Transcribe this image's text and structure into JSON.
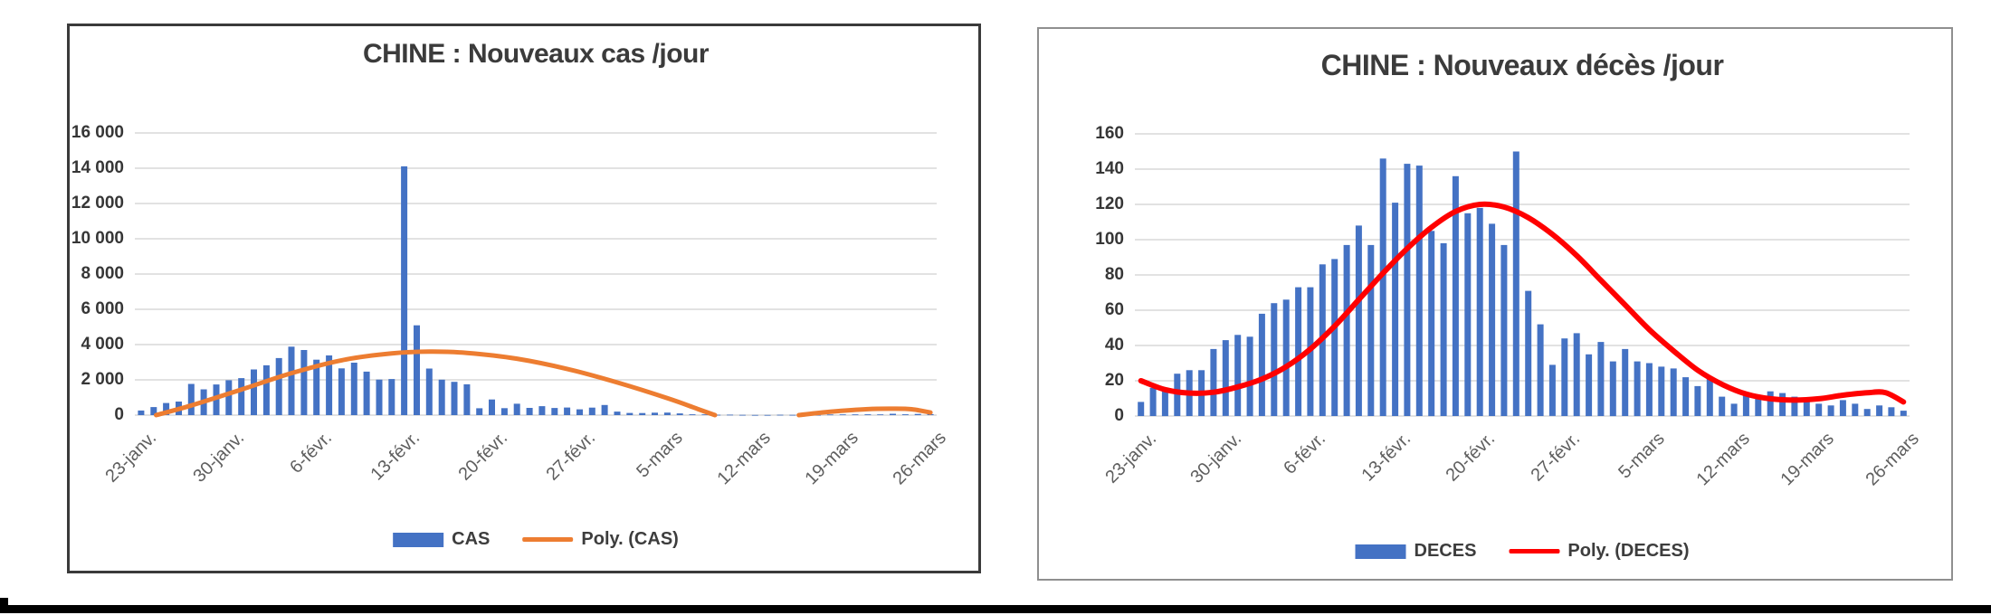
{
  "page": {
    "background": "#ffffff",
    "bottom_rule_color": "#000000"
  },
  "chart_data": [
    {
      "type": "bar",
      "title": "CHINE : Nouveaux cas /jour",
      "xlabel": "",
      "ylabel": "",
      "ylim": [
        0,
        16000
      ],
      "ystep": 2000,
      "grid": true,
      "legend_position": "bottom",
      "ytick_labels": [
        "0",
        "2 000",
        "4 000",
        "6 000",
        "8 000",
        "10 000",
        "12 000",
        "14 000",
        "16 000"
      ],
      "xtick_labels": [
        "23-janv.",
        "30-janv.",
        "6-févr.",
        "13-févr.",
        "20-févr.",
        "27-févr.",
        "5-mars",
        "12-mars",
        "19-mars",
        "26-mars"
      ],
      "xtick_days": [
        0,
        7,
        14,
        21,
        28,
        35,
        42,
        49,
        56,
        63
      ],
      "categories_note": "daily values from 23-janv. to 26-mars",
      "series": [
        {
          "name": "CAS",
          "kind": "bar",
          "color": "#4472C4",
          "values": [
            259,
            457,
            688,
            769,
            1771,
            1459,
            1737,
            1981,
            2099,
            2589,
            2825,
            3235,
            3884,
            3694,
            3143,
            3385,
            2652,
            2973,
            2467,
            2015,
            2048,
            14108,
            5090,
            2641,
            2009,
            1888,
            1749,
            391,
            889,
            397,
            648,
            409,
            508,
            406,
            433,
            327,
            427,
            573,
            202,
            125,
            119,
            139,
            143,
            99,
            44,
            40,
            19,
            24,
            15,
            8,
            11,
            20,
            16,
            21,
            13,
            34,
            39,
            41,
            46,
            39,
            78,
            47,
            67,
            55
          ]
        },
        {
          "name": "Poly. (CAS)",
          "kind": "trendline",
          "color": "#ED7D31",
          "stroke_width": 5,
          "segments": [
            [
              [
                1.2,
                0
              ],
              [
                4,
                550
              ],
              [
                8,
                1450
              ],
              [
                12,
                2380
              ],
              [
                16,
                3110
              ],
              [
                20,
                3500
              ],
              [
                23,
                3600
              ],
              [
                26,
                3530
              ],
              [
                30,
                3200
              ],
              [
                34,
                2620
              ],
              [
                38,
                1850
              ],
              [
                42,
                960
              ],
              [
                44.5,
                330
              ],
              [
                45.8,
                0
              ]
            ],
            [
              [
                52.5,
                0
              ],
              [
                55,
                190
              ],
              [
                58,
                340
              ],
              [
                60,
                365
              ],
              [
                61.5,
                335
              ],
              [
                63,
                150
              ]
            ]
          ]
        }
      ]
    },
    {
      "type": "bar",
      "title": "CHINE : Nouveaux décès /jour",
      "xlabel": "",
      "ylabel": "",
      "ylim": [
        0,
        160
      ],
      "ystep": 20,
      "grid": true,
      "legend_position": "bottom",
      "ytick_labels": [
        "0",
        "20",
        "40",
        "60",
        "80",
        "100",
        "120",
        "140",
        "160"
      ],
      "xtick_labels": [
        "23-janv.",
        "30-janv.",
        "6-févr.",
        "13-févr.",
        "20-févr.",
        "27-févr.",
        "5-mars",
        "12-mars",
        "19-mars",
        "26-mars"
      ],
      "xtick_days": [
        0,
        7,
        14,
        21,
        28,
        35,
        42,
        49,
        56,
        63
      ],
      "categories_note": "daily values from 23-janv. to 26-mars",
      "series": [
        {
          "name": "DECES",
          "kind": "bar",
          "color": "#4472C4",
          "values": [
            8,
            16,
            15,
            24,
            26,
            26,
            38,
            43,
            46,
            45,
            58,
            64,
            66,
            73,
            73,
            86,
            89,
            97,
            108,
            97,
            146,
            121,
            143,
            142,
            105,
            98,
            136,
            115,
            118,
            109,
            97,
            150,
            71,
            52,
            29,
            44,
            47,
            35,
            42,
            31,
            38,
            31,
            30,
            28,
            27,
            22,
            17,
            22,
            11,
            7,
            13,
            10,
            14,
            13,
            11,
            8,
            7,
            6,
            9,
            7,
            4,
            6,
            5,
            3
          ]
        },
        {
          "name": "Poly. (DECES)",
          "kind": "trendline",
          "color": "#FF0000",
          "stroke_width": 6,
          "segments": [
            [
              [
                0,
                20
              ],
              [
                2,
                15
              ],
              [
                4,
                13
              ],
              [
                6,
                13.5
              ],
              [
                8,
                16.5
              ],
              [
                10,
                21
              ],
              [
                12,
                28
              ],
              [
                14,
                38
              ],
              [
                16,
                51
              ],
              [
                18,
                66
              ],
              [
                20,
                81
              ],
              [
                22,
                95
              ],
              [
                24,
                107
              ],
              [
                26,
                116
              ],
              [
                28,
                120
              ],
              [
                30,
                118.5
              ],
              [
                32,
                112.5
              ],
              [
                34,
                103
              ],
              [
                36,
                91
              ],
              [
                38,
                77
              ],
              [
                40,
                63
              ],
              [
                42,
                49
              ],
              [
                44,
                37
              ],
              [
                46,
                26
              ],
              [
                48,
                18
              ],
              [
                50,
                12.5
              ],
              [
                52,
                9.8
              ],
              [
                54,
                9
              ],
              [
                56,
                9.8
              ],
              [
                58,
                11.8
              ],
              [
                60,
                13.2
              ],
              [
                61.5,
                13.3
              ],
              [
                63,
                8
              ]
            ]
          ]
        }
      ]
    }
  ]
}
